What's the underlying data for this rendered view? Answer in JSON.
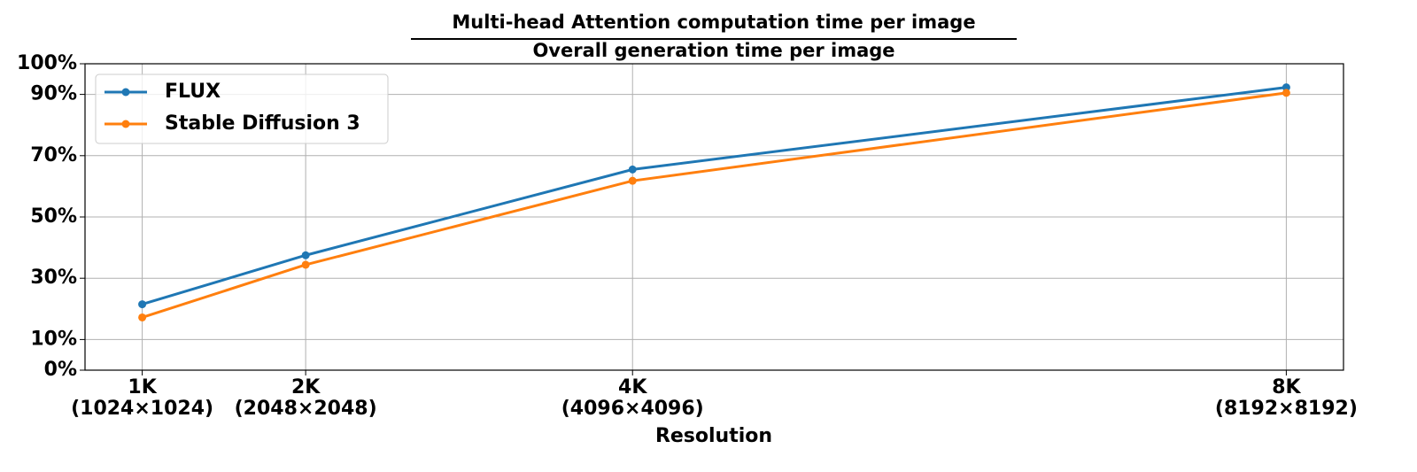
{
  "chart_data": {
    "type": "line",
    "title": "Multi-head Attention computation time per image",
    "subtitle": "Overall generation time per image",
    "x_label": "Resolution",
    "x": [
      1,
      2,
      4,
      8
    ],
    "series": [
      {
        "name": "FLUX",
        "color": "#1f77b4",
        "values": [
          21.5,
          37.5,
          65.5,
          92.3
        ]
      },
      {
        "name": "Stable Diffusion 3",
        "color": "#ff7f0e",
        "values": [
          17.2,
          34.4,
          61.8,
          90.5
        ]
      }
    ],
    "xlim": [
      0.65,
      8.35
    ],
    "xticks": [
      {
        "value": 1,
        "label": "1K\n(1024×1024)"
      },
      {
        "value": 2,
        "label": "2K\n(2048×2048)"
      },
      {
        "value": 4,
        "label": "4K\n(4096×4096)"
      },
      {
        "value": 8,
        "label": "8K\n(8192×8192)"
      }
    ],
    "ylim": [
      0,
      100
    ],
    "yticks": [
      {
        "value": 0,
        "label": "0%"
      },
      {
        "value": 10,
        "label": "10%"
      },
      {
        "value": 30,
        "label": "30%"
      },
      {
        "value": 50,
        "label": "50%"
      },
      {
        "value": 70,
        "label": "70%"
      },
      {
        "value": 90,
        "label": "90%"
      },
      {
        "value": 100,
        "label": "100%"
      }
    ],
    "grid": true,
    "legend": "upper-left"
  }
}
